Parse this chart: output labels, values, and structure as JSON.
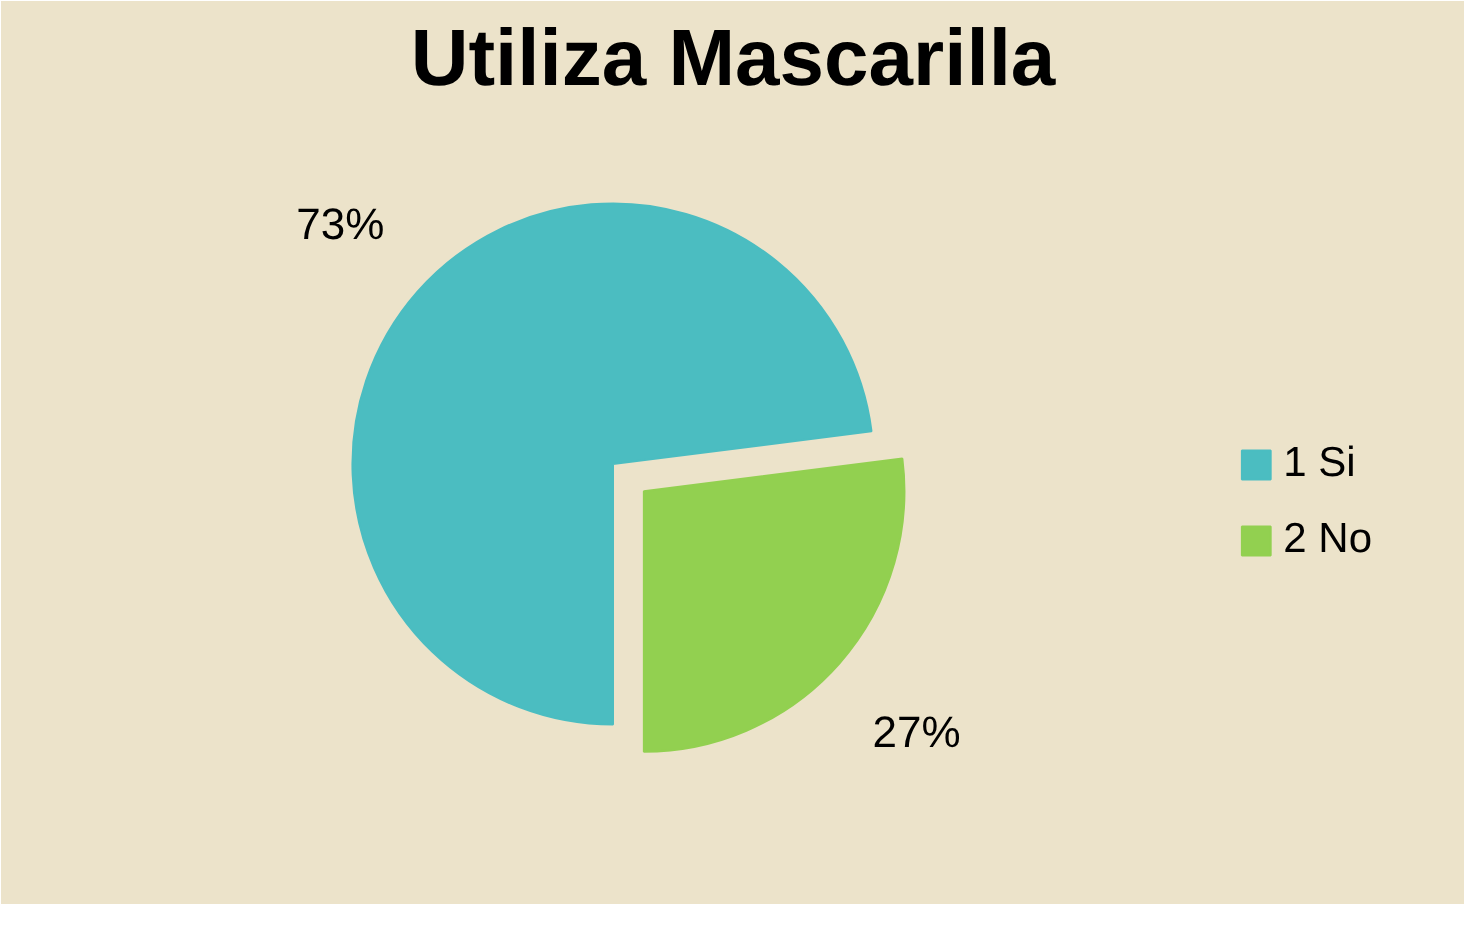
{
  "chart_data": {
    "type": "pie",
    "title": "Utiliza Mascarilla",
    "categories": [
      "1 Si",
      "2 No"
    ],
    "values": [
      73,
      27
    ],
    "colors": [
      "#4bbdc1",
      "#92d050"
    ],
    "value_labels": [
      "73%",
      "27%"
    ],
    "legend": "right"
  }
}
